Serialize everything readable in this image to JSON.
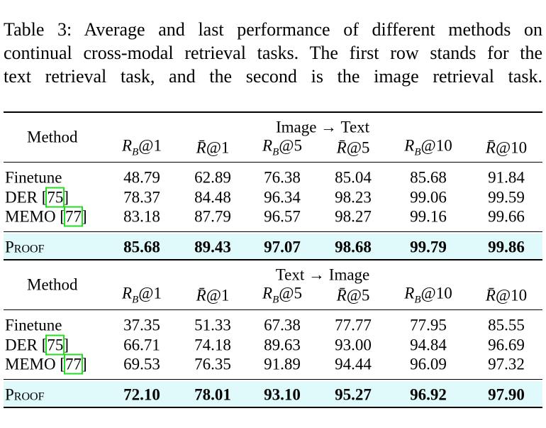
{
  "caption": [
    "Table 3: Average and last performance of different methods on",
    "continual cross-modal retrieval tasks. The first row stands for the",
    "text retrieval task, and the second is the image retrieval task."
  ],
  "blocks": [
    {
      "method_header": "Method",
      "group": "Image → Text",
      "columns": [
        {
          "main": "R",
          "sub": "B",
          "tail": "@1"
        },
        {
          "main": "R̄",
          "tail": "@1"
        },
        {
          "main": "R",
          "sub": "B",
          "tail": "@5"
        },
        {
          "main": "R̄",
          "tail": "@5"
        },
        {
          "main": "R",
          "sub": "B",
          "tail": "@10"
        },
        {
          "main": "R̄",
          "tail": "@10"
        }
      ],
      "rows": [
        {
          "name": "Finetune",
          "values": [
            "48.79",
            "62.89",
            "76.38",
            "85.04",
            "85.68",
            "91.84"
          ]
        },
        {
          "name": "DER [",
          "ref": "75",
          "end": "]",
          "values": [
            "78.37",
            "84.48",
            "96.34",
            "98.23",
            "99.06",
            "99.59"
          ]
        },
        {
          "name": "MEMO [",
          "ref": "77",
          "end": "]",
          "values": [
            "83.18",
            "87.79",
            "96.57",
            "98.27",
            "99.16",
            "99.66"
          ]
        }
      ],
      "highlight": {
        "name": "Proof",
        "values": [
          "85.68",
          "89.43",
          "97.07",
          "98.68",
          "99.79",
          "99.86"
        ]
      }
    },
    {
      "method_header": "Method",
      "group": "Text → Image",
      "columns": [
        {
          "main": "R",
          "sub": "B",
          "tail": "@1"
        },
        {
          "main": "R̄",
          "tail": "@1"
        },
        {
          "main": "R",
          "sub": "B",
          "tail": "@5"
        },
        {
          "main": "R̄",
          "tail": "@5"
        },
        {
          "main": "R",
          "sub": "B",
          "tail": "@10"
        },
        {
          "main": "R̄",
          "tail": "@10"
        }
      ],
      "rows": [
        {
          "name": "Finetune",
          "values": [
            "37.35",
            "51.33",
            "67.38",
            "77.77",
            "77.95",
            "85.55"
          ]
        },
        {
          "name": "DER [",
          "ref": "75",
          "end": "]",
          "values": [
            "66.71",
            "74.18",
            "89.63",
            "93.00",
            "94.84",
            "96.69"
          ]
        },
        {
          "name": "MEMO [",
          "ref": "77",
          "end": "]",
          "values": [
            "69.53",
            "76.35",
            "91.89",
            "94.44",
            "96.09",
            "97.32"
          ]
        }
      ],
      "highlight": {
        "name": "Proof",
        "values": [
          "72.10",
          "78.01",
          "93.10",
          "95.27",
          "96.92",
          "97.90"
        ]
      }
    }
  ]
}
